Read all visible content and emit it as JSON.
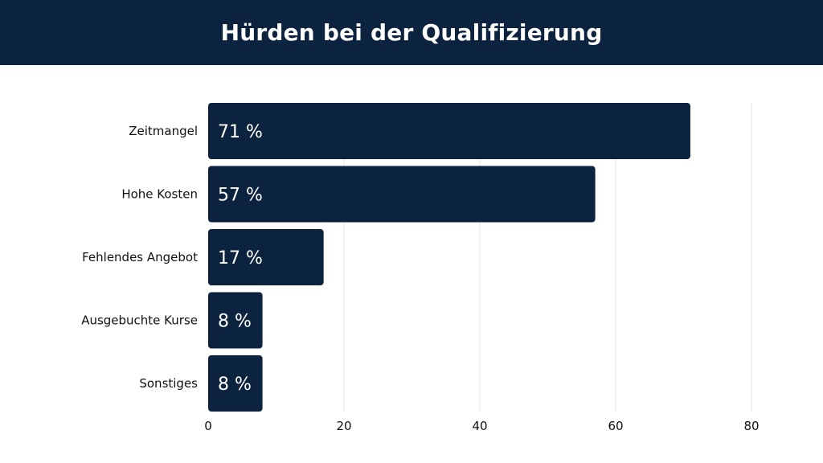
{
  "header": {
    "title": "Hürden bei der Qualifizierung"
  },
  "colors": {
    "header_bg": "#0c2340",
    "bar": "#0c2340",
    "bar_text": "#ffffff",
    "grid": "#e4e4e4"
  },
  "chart_data": {
    "type": "bar",
    "orientation": "horizontal",
    "title": "Hürden bei der Qualifizierung",
    "categories": [
      "Zeitmangel",
      "Hohe Kosten",
      "Fehlendes Angebot",
      "Ausgebuchte Kurse",
      "Sonstiges"
    ],
    "values": [
      71,
      57,
      17,
      8,
      8
    ],
    "value_labels": [
      "71 %",
      "57 %",
      "17 %",
      "8 %",
      "8 %"
    ],
    "xlim": [
      0,
      80
    ],
    "xticks": [
      0,
      20,
      40,
      60,
      80
    ],
    "xtick_labels": [
      "0",
      "20",
      "40",
      "60",
      "80"
    ],
    "grid": true
  }
}
